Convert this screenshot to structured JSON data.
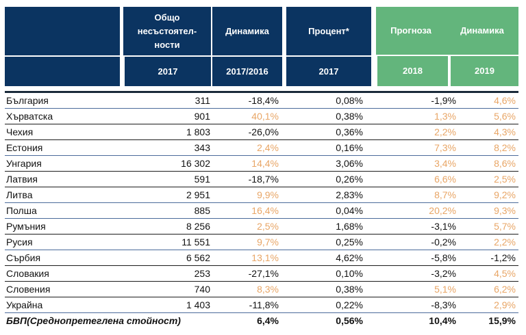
{
  "header": {
    "col1_title": "Общо несъстоятел-ности",
    "col1_line1": "Общо",
    "col1_line2": "несъстоятел-",
    "col1_line3": "ности",
    "col2_title": "Динамика",
    "col3_title": "Процент*",
    "forecast_title": "Прогноза",
    "forecast_dyn": "Динамика",
    "col1_year": "2017",
    "col2_year": "2017/2016",
    "col3_year": "2017",
    "col4_year": "2018",
    "col5_year": "2019"
  },
  "colors": {
    "navy": "#0b3461",
    "green": "#63b57c",
    "positive": "#e8a565"
  },
  "rows": [
    {
      "country": "България",
      "insolv": "311",
      "dyn": "-18,4%",
      "pct": "0,08%",
      "f2018": "-1,9%",
      "f2019": "4,6%"
    },
    {
      "country": "Хърватска",
      "insolv": "901",
      "dyn": "40,1%",
      "pct": "0,38%",
      "f2018": "1,3%",
      "f2019": "5,6%"
    },
    {
      "country": "Чехия",
      "insolv": "1 803",
      "dyn": "-26,0%",
      "pct": "0,36%",
      "f2018": "2,2%",
      "f2019": "4,3%"
    },
    {
      "country": "Естония",
      "insolv": "343",
      "dyn": "2,4%",
      "pct": "0,16%",
      "f2018": "7,3%",
      "f2019": "8,2%"
    },
    {
      "country": "Унгария",
      "insolv": "16 302",
      "dyn": "14,4%",
      "pct": "3,06%",
      "f2018": "3,4%",
      "f2019": "8,6%"
    },
    {
      "country": "Латвия",
      "insolv": "591",
      "dyn": "-18,7%",
      "pct": "0,26%",
      "f2018": "6,6%",
      "f2019": "2,5%"
    },
    {
      "country": "Литва",
      "insolv": "2 951",
      "dyn": "9,9%",
      "pct": "2,83%",
      "f2018": "8,7%",
      "f2019": "9,2%"
    },
    {
      "country": "Полша",
      "insolv": "885",
      "dyn": "16,4%",
      "pct": "0,04%",
      "f2018": "20,2%",
      "f2019": "9,3%"
    },
    {
      "country": "Румъния",
      "insolv": "8 256",
      "dyn": "2,5%",
      "pct": "1,68%",
      "f2018": "-3,1%",
      "f2019": "5,7%"
    },
    {
      "country": "Русия",
      "insolv": "11 551",
      "dyn": "9,7%",
      "pct": "0,25%",
      "f2018": "-0,2%",
      "f2019": "2,2%"
    },
    {
      "country": "Сърбия",
      "insolv": "6 562",
      "dyn": "13,1%",
      "pct": "4,62%",
      "f2018": "-5,8%",
      "f2019": "-1,2%"
    },
    {
      "country": "Словакия",
      "insolv": "253",
      "dyn": "-27,1%",
      "pct": "0,10%",
      "f2018": "-3,2%",
      "f2019": "4,5%"
    },
    {
      "country": "Словения",
      "insolv": "740",
      "dyn": "8,3%",
      "pct": "0,38%",
      "f2018": "5,1%",
      "f2019": "6,2%"
    },
    {
      "country": "Украйна",
      "insolv": "1 403",
      "dyn": "-11,8%",
      "pct": "0,22%",
      "f2018": "-8,3%",
      "f2019": "2,9%"
    }
  ],
  "total": {
    "label": "БВП(Среднопретеглена стойност)",
    "dyn": "6,4%",
    "pct": "0,56%",
    "f2018": "10,4%",
    "f2019": "15,9%"
  }
}
